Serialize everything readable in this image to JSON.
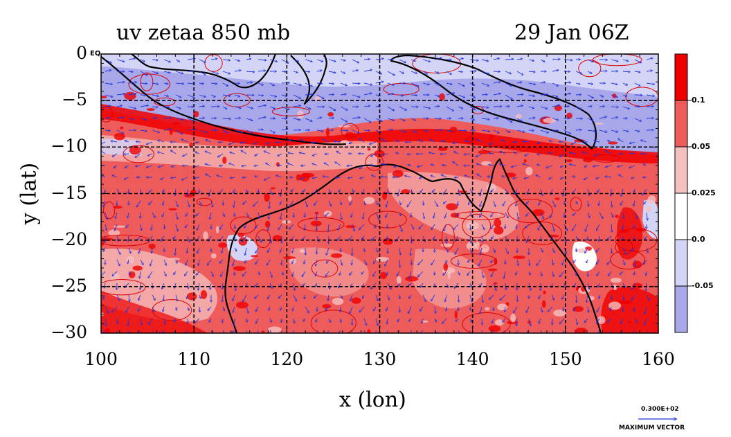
{
  "title_left": "uv zetaa 850 mb",
  "title_right": "29 Jan 06Z",
  "chart_data": {
    "type": "heatmap",
    "xlabel": "x (lon)",
    "ylabel": "y (lat)",
    "xlim": [
      100,
      160
    ],
    "ylim": [
      -30,
      0
    ],
    "x_ticks": [
      100,
      110,
      120,
      130,
      140,
      150,
      160
    ],
    "y_ticks": [
      "0",
      "−5",
      "−10",
      "−15",
      "−20",
      "−25",
      "−30"
    ],
    "y_tick_values": [
      0,
      -5,
      -10,
      -15,
      -20,
      -25,
      -30
    ],
    "y_top_suffix": "EQ",
    "grid": true,
    "colorbar": {
      "labels": [
        "0.1",
        "0.05",
        "0.025",
        "0.0",
        "-0.05"
      ],
      "levels": [
        0.1,
        0.05,
        0.025,
        0.0,
        -0.05
      ],
      "colors": [
        "#ee0000",
        "#ee5b5b",
        "#f5c0c0",
        "#ffffff",
        "#d4d4f6",
        "#a7a7ea"
      ]
    },
    "vector_key": {
      "value": "0.300E+02",
      "label": "MAXIMUM VECTOR"
    },
    "colors": {
      "contour": "#dd0000",
      "coast": "#000000",
      "vector": "#2233dd"
    }
  }
}
